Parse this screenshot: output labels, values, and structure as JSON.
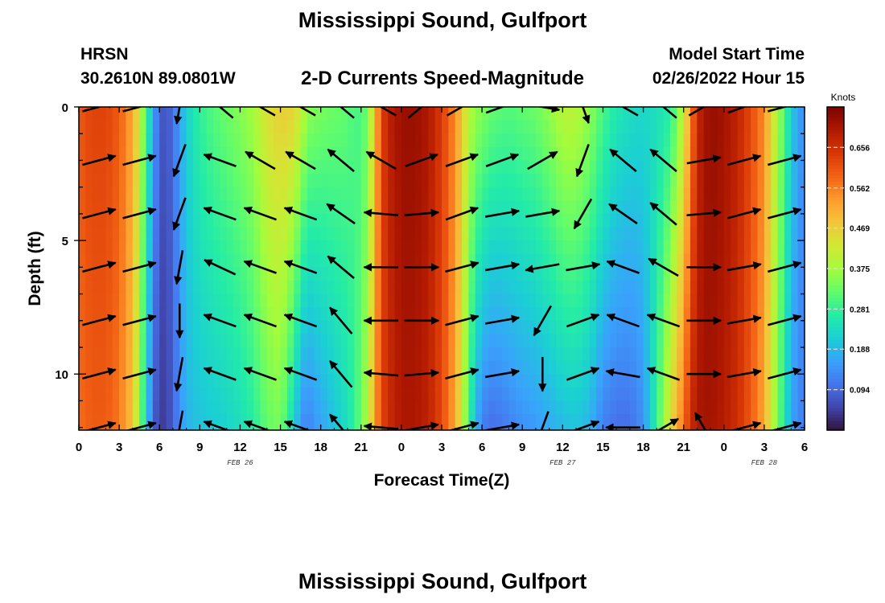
{
  "header": {
    "title": "Mississippi Sound, Gulfport",
    "station": "HRSN",
    "coordinates": "30.2610N  89.0801W",
    "subtitle": "2-D Currents Speed-Magnitude",
    "model_start_label": "Model Start Time",
    "model_start_value": "02/26/2022 Hour 15"
  },
  "footer": {
    "title": "Mississippi Sound, Gulfport"
  },
  "chart_data": {
    "type": "heatmap",
    "title": "2-D Currents Speed-Magnitude",
    "xlabel": "Forecast Time(Z)",
    "ylabel": "Depth (ft)",
    "x_range_hours": [
      0,
      54
    ],
    "ylim": [
      0,
      12.1
    ],
    "y_reversed": true,
    "x_tick_labels": [
      "0",
      "3",
      "6",
      "9",
      "12",
      "15",
      "18",
      "21",
      "0",
      "3",
      "6",
      "9",
      "12",
      "15",
      "18",
      "21",
      "0",
      "3",
      "6"
    ],
    "y_ticks": [
      0,
      5,
      10
    ],
    "y_tick_labels": [
      "0",
      "5",
      "10"
    ],
    "date_labels": [
      {
        "label": "FEB 26",
        "hour": 12
      },
      {
        "label": "FEB 27",
        "hour": 36
      },
      {
        "label": "FEB 28",
        "hour": 51
      }
    ],
    "colorbar": {
      "title": "Knots",
      "min": 0.0,
      "max": 0.75,
      "tick_values": [
        0.094,
        0.188,
        0.281,
        0.375,
        0.469,
        0.562,
        0.656
      ],
      "tick_labels": [
        "0.094",
        "0.188",
        "0.281",
        "0.375",
        "0.469",
        "0.562",
        "0.656"
      ],
      "colormap": [
        "#30123b",
        "#4145ab",
        "#4675ed",
        "#39a2fc",
        "#1bcfd4",
        "#24eca6",
        "#61fc6c",
        "#a4fc3b",
        "#d1e834",
        "#f3c63a",
        "#fe9b2d",
        "#f36315",
        "#d93806",
        "#b11901",
        "#7a0402"
      ]
    },
    "speed_profile": {
      "hours": [
        0,
        0.5,
        1,
        2,
        3,
        4,
        4.5,
        5,
        5.5,
        6,
        6.5,
        7,
        7.5,
        8,
        9,
        10,
        11,
        12,
        13,
        14,
        15,
        16,
        16.5,
        17,
        18,
        19,
        20,
        20.5,
        21,
        21.5,
        22,
        22.5,
        23,
        24,
        25,
        26,
        27,
        28,
        28.5,
        29,
        29.5,
        30,
        30.5,
        31,
        32,
        33,
        34,
        35,
        36,
        37,
        38,
        39,
        40,
        41,
        42,
        43,
        44,
        45,
        45.5,
        46,
        46.5,
        47,
        47.5,
        48,
        49,
        50,
        51,
        51.5,
        52,
        52.5,
        53,
        53.5,
        54
      ],
      "surface": [
        0.6,
        0.62,
        0.63,
        0.63,
        0.6,
        0.52,
        0.42,
        0.3,
        0.18,
        0.08,
        0.07,
        0.1,
        0.16,
        0.22,
        0.28,
        0.31,
        0.33,
        0.35,
        0.38,
        0.44,
        0.47,
        0.46,
        0.42,
        0.36,
        0.34,
        0.33,
        0.32,
        0.3,
        0.3,
        0.34,
        0.48,
        0.62,
        0.68,
        0.72,
        0.72,
        0.7,
        0.64,
        0.55,
        0.48,
        0.4,
        0.36,
        0.35,
        0.33,
        0.32,
        0.31,
        0.32,
        0.33,
        0.36,
        0.4,
        0.4,
        0.36,
        0.3,
        0.26,
        0.24,
        0.23,
        0.24,
        0.27,
        0.4,
        0.55,
        0.66,
        0.71,
        0.72,
        0.72,
        0.71,
        0.68,
        0.62,
        0.55,
        0.46,
        0.38,
        0.3,
        0.22,
        0.16,
        0.14
      ],
      "bottom": [
        0.58,
        0.59,
        0.6,
        0.6,
        0.57,
        0.48,
        0.36,
        0.22,
        0.1,
        0.04,
        0.05,
        0.08,
        0.14,
        0.18,
        0.2,
        0.21,
        0.22,
        0.24,
        0.27,
        0.32,
        0.34,
        0.22,
        0.14,
        0.12,
        0.16,
        0.2,
        0.24,
        0.28,
        0.33,
        0.4,
        0.52,
        0.62,
        0.66,
        0.7,
        0.7,
        0.68,
        0.62,
        0.52,
        0.42,
        0.3,
        0.18,
        0.12,
        0.1,
        0.1,
        0.12,
        0.14,
        0.15,
        0.17,
        0.19,
        0.2,
        0.18,
        0.12,
        0.1,
        0.1,
        0.14,
        0.28,
        0.45,
        0.58,
        0.66,
        0.7,
        0.71,
        0.71,
        0.7,
        0.69,
        0.66,
        0.6,
        0.52,
        0.42,
        0.34,
        0.25,
        0.17,
        0.13,
        0.12
      ]
    },
    "arrows": {
      "hours": [
        0,
        3,
        6,
        9,
        12,
        15,
        18,
        21,
        24,
        27,
        30,
        33,
        36,
        39,
        42,
        45,
        48,
        51
      ],
      "depths": [
        0,
        2,
        4,
        6,
        8,
        10,
        12
      ],
      "angle_deg_by_row": [
        [
          15,
          15,
          -100,
          140,
          150,
          150,
          140,
          150,
          40,
          30,
          20,
          -10,
          -70,
          150,
          140,
          30,
          20,
          15
        ],
        [
          15,
          15,
          -110,
          160,
          150,
          150,
          140,
          150,
          20,
          20,
          20,
          30,
          -110,
          140,
          140,
          10,
          15,
          15
        ],
        [
          15,
          15,
          -110,
          160,
          160,
          160,
          145,
          175,
          5,
          20,
          10,
          10,
          -120,
          145,
          140,
          5,
          15,
          15
        ],
        [
          15,
          15,
          -100,
          155,
          160,
          160,
          140,
          180,
          0,
          15,
          10,
          -170,
          10,
          160,
          150,
          0,
          10,
          15
        ],
        [
          15,
          15,
          -90,
          160,
          160,
          160,
          130,
          180,
          0,
          15,
          10,
          -120,
          20,
          160,
          160,
          0,
          10,
          15
        ],
        [
          15,
          15,
          -100,
          160,
          160,
          160,
          130,
          175,
          5,
          15,
          10,
          -90,
          20,
          170,
          160,
          0,
          10,
          15
        ],
        [
          15,
          15,
          -100,
          160,
          160,
          160,
          130,
          175,
          10,
          15,
          10,
          -110,
          20,
          180,
          30,
          120,
          15,
          15
        ]
      ],
      "arrow_length": 0.85
    }
  }
}
